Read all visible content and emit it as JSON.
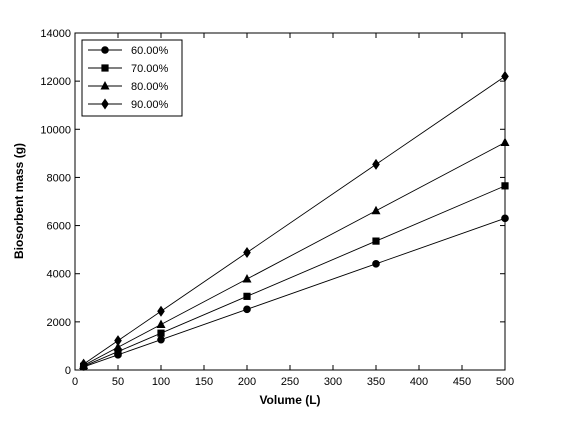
{
  "chart_data": {
    "type": "line",
    "title": "",
    "xlabel": "Volume (L)",
    "ylabel": "Biosorbent mass (g)",
    "xlim": [
      0,
      500
    ],
    "ylim": [
      0,
      14000
    ],
    "xticks": [
      0,
      50,
      100,
      150,
      200,
      250,
      300,
      350,
      400,
      450,
      500
    ],
    "yticks": [
      0,
      2000,
      4000,
      6000,
      8000,
      10000,
      12000,
      14000
    ],
    "grid": false,
    "legend_position": "top-left",
    "x": [
      10,
      50,
      100,
      200,
      350,
      500
    ],
    "series": [
      {
        "name": "60.00%",
        "marker": "circle",
        "values": [
          126,
          630,
          1260,
          2520,
          4410,
          6300
        ]
      },
      {
        "name": "70.00%",
        "marker": "square",
        "values": [
          153,
          765,
          1530,
          3060,
          5355,
          7650
        ]
      },
      {
        "name": "80.00%",
        "marker": "triangle",
        "values": [
          189,
          945,
          1890,
          3780,
          6615,
          9450
        ]
      },
      {
        "name": "90.00%",
        "marker": "diamond",
        "values": [
          244,
          1220,
          2440,
          4880,
          8540,
          12200
        ]
      }
    ]
  }
}
